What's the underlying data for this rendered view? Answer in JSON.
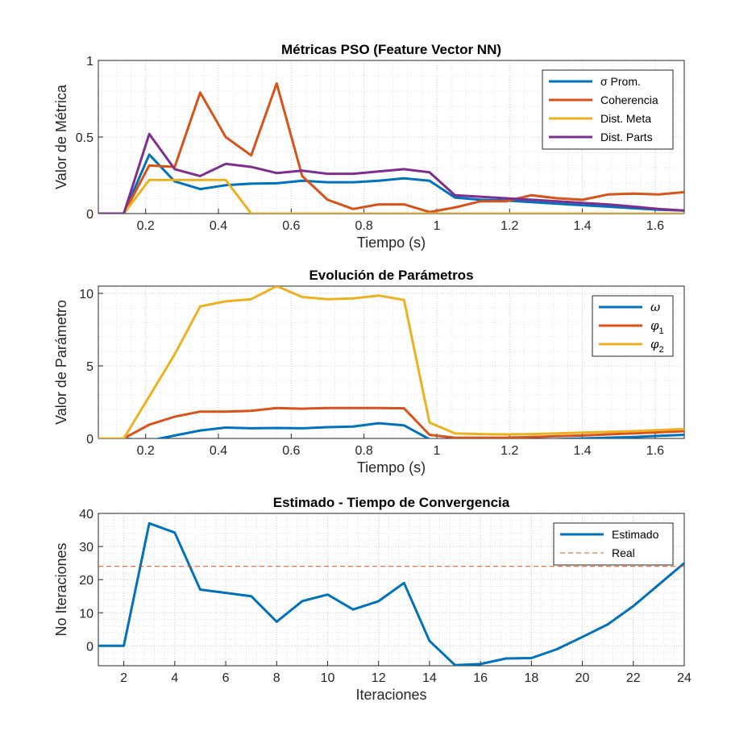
{
  "chart_data": [
    {
      "type": "line",
      "title": "Métricas PSO (Feature Vector NN)",
      "xlabel": "Tiempo (s)",
      "ylabel": "Valor de Métrica",
      "xlim": [
        0.07,
        1.68
      ],
      "ylim": [
        0,
        1
      ],
      "xticks": [
        0.2,
        0.4,
        0.6,
        0.8,
        1,
        1.2,
        1.4,
        1.6
      ],
      "xtick_labels": [
        "0.2",
        "0.4",
        "0.6",
        "0.8",
        "1",
        "1.2",
        "1.4",
        "1.6"
      ],
      "yticks": [
        0,
        0.5,
        1
      ],
      "ytick_labels": [
        "0",
        "0.5",
        "1"
      ],
      "grid": true,
      "legend_position": "top-right",
      "x": [
        0.07,
        0.14,
        0.21,
        0.28,
        0.35,
        0.42,
        0.49,
        0.56,
        0.63,
        0.7,
        0.77,
        0.84,
        0.91,
        0.98,
        1.05,
        1.12,
        1.19,
        1.26,
        1.33,
        1.4,
        1.47,
        1.54,
        1.61,
        1.68
      ],
      "series": [
        {
          "name": "σ Prom.",
          "color": "#0072BD",
          "values": [
            0,
            0,
            0.385,
            0.21,
            0.16,
            0.185,
            0.195,
            0.198,
            0.215,
            0.205,
            0.205,
            0.215,
            0.23,
            0.215,
            0.105,
            0.09,
            0.085,
            0.075,
            0.065,
            0.055,
            0.045,
            0.035,
            0.025,
            0.02
          ]
        },
        {
          "name": "Coherencia",
          "color": "#D95319",
          "values": [
            0,
            0,
            0.315,
            0.305,
            0.79,
            0.5,
            0.38,
            0.85,
            0.245,
            0.09,
            0.03,
            0.06,
            0.06,
            0.01,
            0.04,
            0.08,
            0.08,
            0.12,
            0.1,
            0.09,
            0.125,
            0.13,
            0.125,
            0.14
          ]
        },
        {
          "name": "Dist. Meta",
          "color": "#EDB120",
          "values": [
            0,
            0,
            0.22,
            0.22,
            0.22,
            0.22,
            0,
            0,
            0,
            0,
            0,
            0,
            0,
            0,
            0,
            0,
            0,
            0,
            0,
            0,
            0,
            0,
            0,
            0
          ]
        },
        {
          "name": "Dist. Parts",
          "color": "#7E2F8E",
          "values": [
            0,
            0,
            0.52,
            0.29,
            0.245,
            0.325,
            0.305,
            0.265,
            0.28,
            0.26,
            0.26,
            0.275,
            0.29,
            0.27,
            0.12,
            0.11,
            0.1,
            0.09,
            0.08,
            0.07,
            0.06,
            0.045,
            0.03,
            0.02
          ]
        }
      ]
    },
    {
      "type": "line",
      "title": "Evolución de Parámetros",
      "xlabel": "Tiempo (s)",
      "ylabel": "Valor de Parámetro",
      "xlim": [
        0.07,
        1.68
      ],
      "ylim": [
        0,
        10.5
      ],
      "xticks": [
        0.2,
        0.4,
        0.6,
        0.8,
        1,
        1.2,
        1.4,
        1.6
      ],
      "xtick_labels": [
        "0.2",
        "0.4",
        "0.6",
        "0.8",
        "1",
        "1.2",
        "1.4",
        "1.6"
      ],
      "yticks": [
        0,
        5,
        10
      ],
      "ytick_labels": [
        "0",
        "5",
        "10"
      ],
      "grid": true,
      "legend_position": "top-right",
      "x": [
        0.07,
        0.14,
        0.21,
        0.28,
        0.35,
        0.42,
        0.49,
        0.56,
        0.63,
        0.7,
        0.77,
        0.84,
        0.91,
        0.98,
        1.05,
        1.12,
        1.19,
        1.26,
        1.33,
        1.4,
        1.47,
        1.54,
        1.61,
        1.68
      ],
      "series": [
        {
          "name": "ω",
          "symbol": "ω",
          "sub": "",
          "color": "#0072BD",
          "values": [
            0,
            0,
            -0.15,
            0.2,
            0.55,
            0.75,
            0.7,
            0.72,
            0.7,
            0.78,
            0.82,
            1.05,
            0.9,
            -0.05,
            -0.1,
            -0.12,
            -0.1,
            -0.1,
            -0.05,
            0,
            0.05,
            0.1,
            0.18,
            0.25
          ]
        },
        {
          "name": "φ1",
          "symbol": "φ",
          "sub": "1",
          "color": "#D95319",
          "values": [
            0,
            0,
            0.95,
            1.5,
            1.85,
            1.85,
            1.9,
            2.1,
            2.05,
            2.1,
            2.1,
            2.1,
            2.08,
            0.25,
            0.05,
            0.05,
            0.05,
            0.1,
            0.15,
            0.2,
            0.28,
            0.35,
            0.42,
            0.5
          ]
        },
        {
          "name": "φ2",
          "symbol": "φ",
          "sub": "2",
          "color": "#EDB120",
          "values": [
            0,
            0,
            2.9,
            5.8,
            9.1,
            9.45,
            9.6,
            10.5,
            9.75,
            9.6,
            9.65,
            9.85,
            9.55,
            1.1,
            0.35,
            0.3,
            0.28,
            0.3,
            0.35,
            0.4,
            0.45,
            0.5,
            0.58,
            0.65
          ]
        }
      ]
    },
    {
      "type": "line",
      "title": "Estimado - Tiempo de Convergencia",
      "xlabel": "Iteraciones",
      "ylabel": "No Iteraciones",
      "xlim": [
        1,
        24
      ],
      "ylim": [
        -6,
        40
      ],
      "xticks": [
        2,
        4,
        6,
        8,
        10,
        12,
        14,
        16,
        18,
        20,
        22,
        24
      ],
      "xtick_labels": [
        "2",
        "4",
        "6",
        "8",
        "10",
        "12",
        "14",
        "16",
        "18",
        "20",
        "22",
        "24"
      ],
      "yticks": [
        0,
        10,
        20,
        30,
        40
      ],
      "ytick_labels": [
        "0",
        "10",
        "20",
        "30",
        "40"
      ],
      "grid": true,
      "legend_position": "top-right",
      "x": [
        1,
        2,
        3,
        4,
        5,
        6,
        7,
        8,
        9,
        10,
        11,
        12,
        13,
        14,
        15,
        16,
        17,
        18,
        19,
        20,
        21,
        22,
        23,
        24
      ],
      "series": [
        {
          "name": "Estimado",
          "color": "#0072BD",
          "style": "solid",
          "values": [
            0,
            0,
            37,
            34.2,
            17,
            16,
            15,
            7.3,
            13.5,
            15.5,
            11,
            13.5,
            19,
            1.5,
            -5.8,
            -5.5,
            -3.8,
            -3.7,
            -1,
            2.7,
            6.5,
            12,
            18.5,
            25
          ]
        },
        {
          "name": "Real",
          "color": "#D95319",
          "style": "dashed",
          "constant": 24
        }
      ]
    }
  ]
}
